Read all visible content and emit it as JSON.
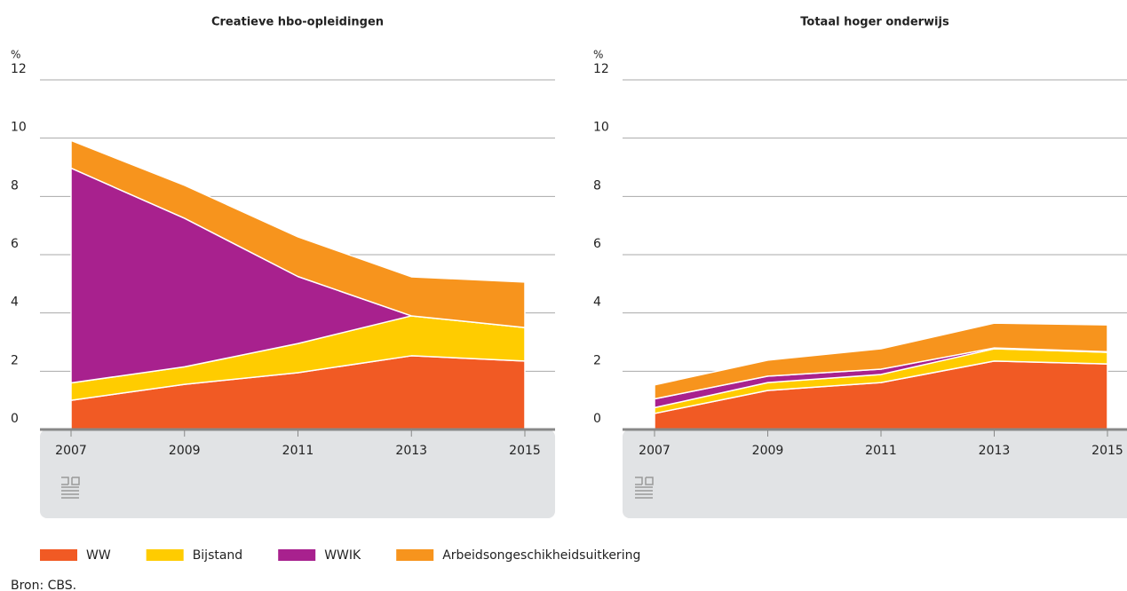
{
  "charts": [
    {
      "type": "area",
      "stacked": true,
      "title": "Creatieve hbo-opleidingen",
      "ylabel": "%",
      "categories": [
        "2007",
        "2009",
        "2011",
        "2013",
        "2015"
      ],
      "ylim": [
        0,
        12
      ],
      "yticks": [
        0,
        2,
        4,
        6,
        8,
        10,
        12
      ],
      "grid": true,
      "series": [
        {
          "values": [
            1.0,
            1.55,
            1.95,
            2.53,
            2.35
          ]
        },
        {
          "values": [
            0.6,
            0.6,
            1.0,
            1.37,
            1.15
          ]
        },
        {
          "values": [
            7.37,
            5.1,
            2.3,
            0,
            0
          ]
        },
        {
          "values": [
            0.95,
            1.13,
            1.36,
            1.34,
            1.56
          ]
        }
      ]
    },
    {
      "type": "area",
      "stacked": true,
      "title": "Totaal hoger onderwijs",
      "ylabel": "%",
      "categories": [
        "2007",
        "2009",
        "2011",
        "2013",
        "2015"
      ],
      "ylim": [
        0,
        12
      ],
      "yticks": [
        0,
        2,
        4,
        6,
        8,
        10,
        12
      ],
      "grid": true,
      "series": [
        {
          "values": [
            0.55,
            1.34,
            1.61,
            2.35,
            2.25
          ]
        },
        {
          "values": [
            0.2,
            0.27,
            0.28,
            0.42,
            0.4
          ]
        },
        {
          "values": [
            0.3,
            0.22,
            0.18,
            0.03,
            0.02
          ]
        },
        {
          "values": [
            0.48,
            0.55,
            0.7,
            0.85,
            0.92
          ]
        }
      ]
    }
  ],
  "legend": [
    {
      "name": "WW",
      "color": "#f15a24"
    },
    {
      "name": "Bijstand",
      "color": "#ffcc00"
    },
    {
      "name": "WWIK",
      "color": "#a8218e"
    },
    {
      "name": "Arbeidsongeschikheidsuitkering",
      "color": "#f7941d"
    }
  ],
  "source": "Bron: CBS."
}
